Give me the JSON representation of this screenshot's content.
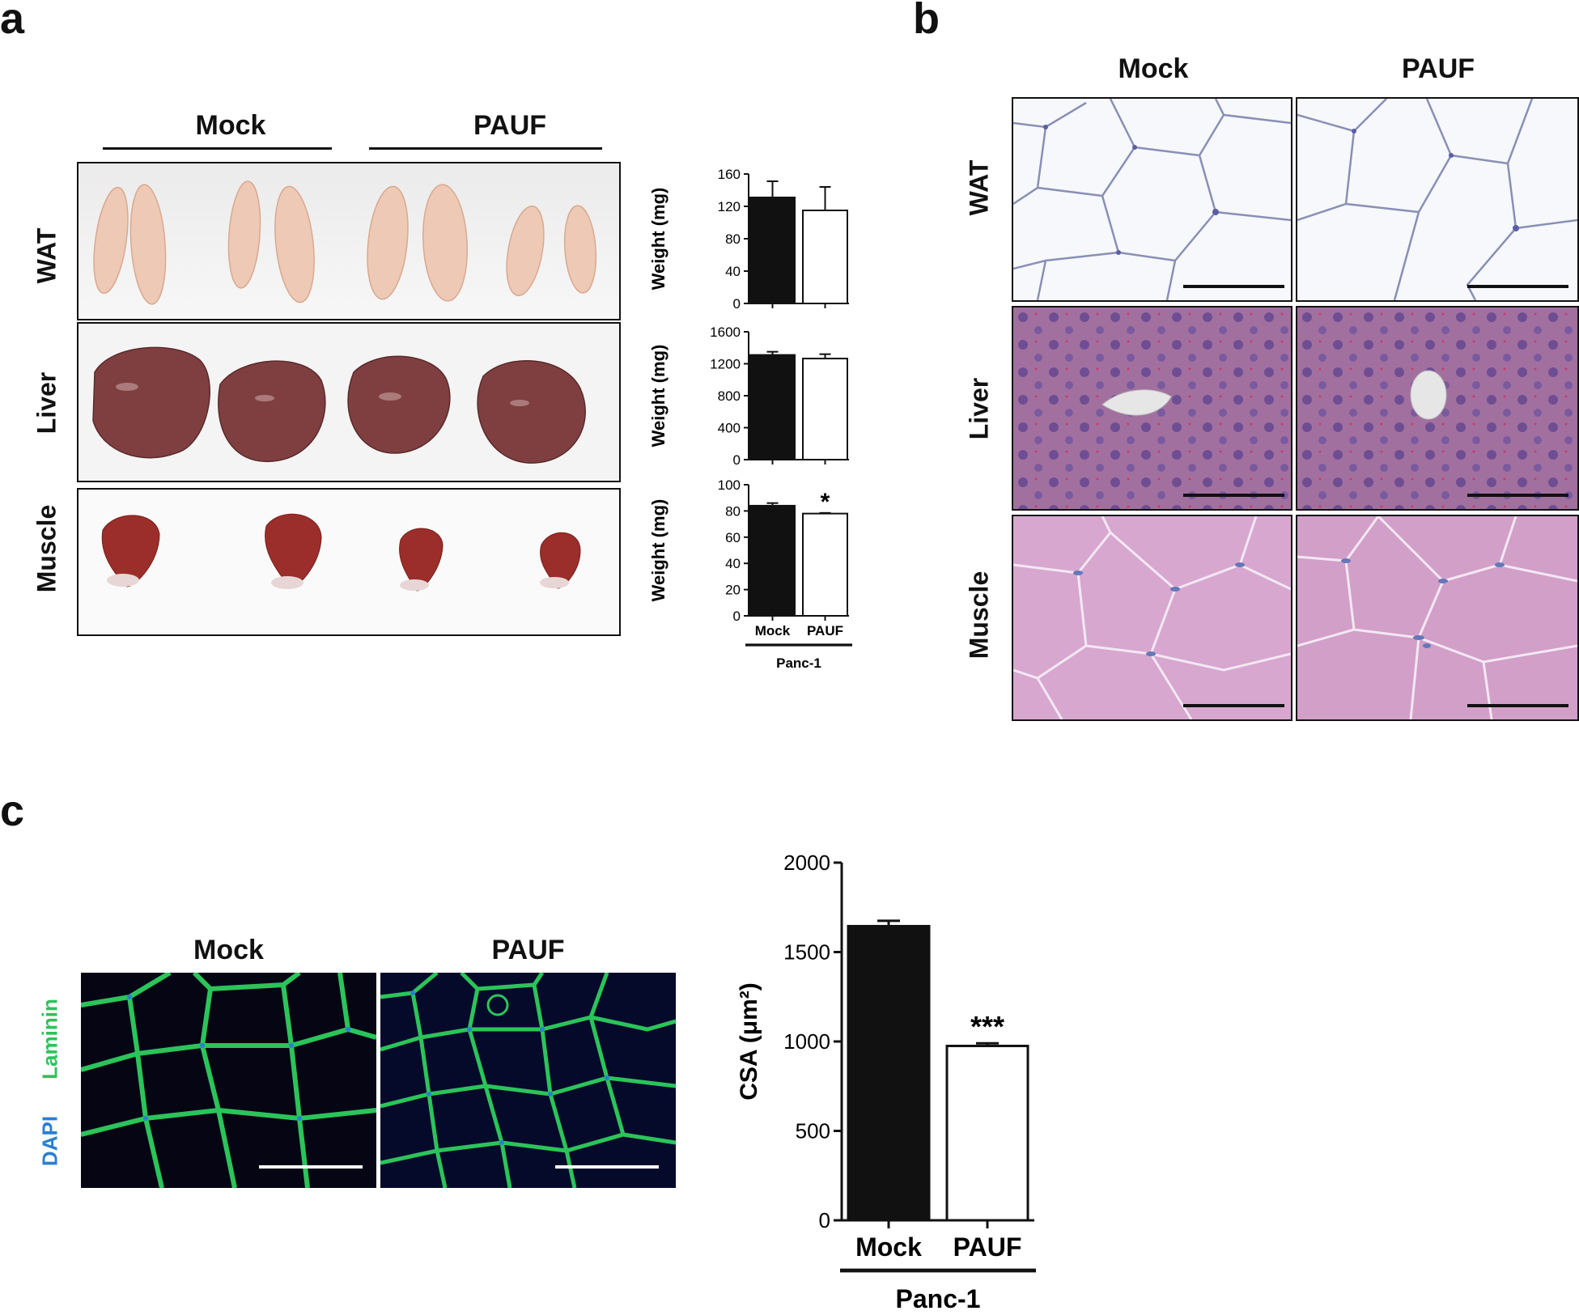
{
  "panels": {
    "a": {
      "letter": "a",
      "group_labels": [
        "Mock",
        "PAUF"
      ],
      "row_labels": [
        "WAT",
        "Liver",
        "Muscle"
      ],
      "xgroup": "Panc-1"
    },
    "b": {
      "letter": "b",
      "col_labels": [
        "Mock",
        "PAUF"
      ],
      "row_labels": [
        "WAT",
        "Liver",
        "Muscle"
      ]
    },
    "c": {
      "letter": "c",
      "col_labels": [
        "Mock",
        "PAUF"
      ],
      "stain_labels": [
        "Laminin",
        "DAPI"
      ]
    }
  },
  "colors": {
    "black_bar": "#111111",
    "white_bar": "#ffffff",
    "laminin": "#2bc45a",
    "dapi": "#2a7fd1",
    "he_pink": "#c98bb8",
    "liver_purple": "#9b6a9f"
  },
  "chart_data": [
    {
      "id": "wat",
      "type": "bar",
      "categories": [
        "Mock",
        "PAUF"
      ],
      "values": [
        131,
        115
      ],
      "errors": [
        20,
        29
      ],
      "ylabel": "Weight (mg)",
      "ylim": [
        0,
        160
      ],
      "yticks": [
        0,
        40,
        80,
        120,
        160
      ],
      "annotations": []
    },
    {
      "id": "liver",
      "type": "bar",
      "categories": [
        "Mock",
        "PAUF"
      ],
      "values": [
        1310,
        1265
      ],
      "errors": [
        40,
        55
      ],
      "ylabel": "Weight (mg)",
      "ylim": [
        0,
        1600
      ],
      "yticks": [
        0,
        400,
        800,
        1200,
        1600
      ],
      "annotations": []
    },
    {
      "id": "muscle",
      "type": "bar",
      "categories": [
        "Mock",
        "PAUF"
      ],
      "values": [
        84,
        78
      ],
      "errors": [
        2,
        0.5
      ],
      "ylabel": "Weight (mg)",
      "ylim": [
        0,
        100
      ],
      "yticks": [
        0,
        20,
        40,
        60,
        80,
        100
      ],
      "annotations": [
        "",
        "*"
      ],
      "xgroup": "Panc-1"
    },
    {
      "id": "csa",
      "type": "bar",
      "categories": [
        "Mock",
        "PAUF"
      ],
      "values": [
        1645,
        975
      ],
      "errors": [
        30,
        15
      ],
      "ylabel": "CSA (μm²)",
      "ylim": [
        0,
        2000
      ],
      "yticks": [
        0,
        500,
        1000,
        1500,
        2000
      ],
      "annotations": [
        "",
        "***"
      ],
      "xgroup": "Panc-1"
    }
  ]
}
